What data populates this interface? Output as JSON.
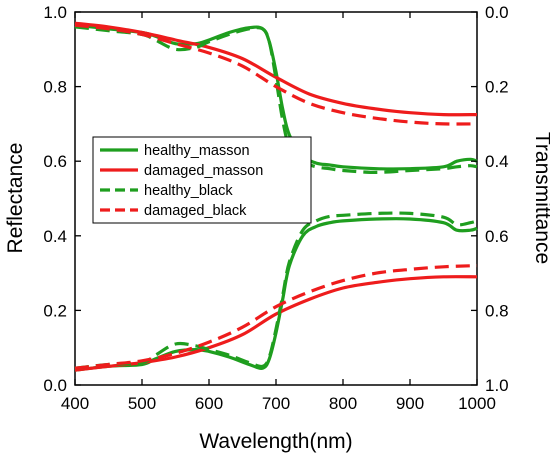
{
  "chart_data": {
    "type": "line",
    "xlabel": "Wavelength(nm)",
    "ylabel": "Reflectance",
    "y2label": "Transmittance",
    "xlim": [
      400,
      1000
    ],
    "ylim": [
      0.0,
      1.0
    ],
    "y2lim": [
      1.0,
      0.0
    ],
    "x_ticks": [
      400,
      500,
      600,
      700,
      800,
      900,
      1000
    ],
    "y_ticks": [
      0.0,
      0.2,
      0.4,
      0.6,
      0.8,
      1.0
    ],
    "y_tick_labels": [
      "0.0",
      "0.2",
      "0.4",
      "0.6",
      "0.8",
      "1.0"
    ],
    "y2_ticks": [
      0.0,
      0.2,
      0.4,
      0.6,
      0.8,
      1.0
    ],
    "y2_tick_labels": [
      "0.0",
      "0.2",
      "0.4",
      "0.6",
      "0.8",
      "1.0"
    ],
    "grid": false,
    "legend_position": "upper-left",
    "legend": [
      {
        "label": "healthy_masson",
        "color": "#1f9e1f",
        "style": "solid"
      },
      {
        "label": "damaged_masson",
        "color": "#ee1c1c",
        "style": "solid"
      },
      {
        "label": "healthy_black",
        "color": "#1f9e1f",
        "style": "dashed"
      },
      {
        "label": "damaged_black",
        "color": "#ee1c1c",
        "style": "dashed"
      }
    ],
    "series": [
      {
        "name": "healthy_masson",
        "axis": "left",
        "color": "#1f9e1f",
        "style": "solid",
        "x": [
          400,
          450,
          500,
          520,
          550,
          580,
          600,
          630,
          660,
          680,
          690,
          700,
          710,
          720,
          740,
          760,
          780,
          800,
          850,
          900,
          950,
          970,
          990,
          1000
        ],
        "y": [
          0.965,
          0.955,
          0.945,
          0.935,
          0.915,
          0.915,
          0.925,
          0.945,
          0.958,
          0.955,
          0.92,
          0.84,
          0.74,
          0.67,
          0.615,
          0.595,
          0.59,
          0.585,
          0.58,
          0.58,
          0.585,
          0.6,
          0.605,
          0.6
        ]
      },
      {
        "name": "damaged_masson",
        "axis": "left",
        "color": "#ee1c1c",
        "style": "solid",
        "x": [
          400,
          450,
          500,
          550,
          600,
          650,
          700,
          750,
          800,
          850,
          900,
          950,
          1000
        ],
        "y": [
          0.97,
          0.96,
          0.945,
          0.925,
          0.905,
          0.875,
          0.825,
          0.78,
          0.755,
          0.74,
          0.73,
          0.725,
          0.725
        ]
      },
      {
        "name": "healthy_black",
        "axis": "left",
        "color": "#1f9e1f",
        "style": "dashed",
        "x": [
          400,
          450,
          500,
          520,
          550,
          580,
          600,
          630,
          660,
          680,
          690,
          700,
          710,
          720,
          740,
          760,
          780,
          800,
          850,
          900,
          950,
          970,
          990,
          1000
        ],
        "y": [
          0.96,
          0.95,
          0.94,
          0.925,
          0.9,
          0.905,
          0.92,
          0.94,
          0.955,
          0.955,
          0.92,
          0.82,
          0.71,
          0.64,
          0.6,
          0.585,
          0.58,
          0.575,
          0.57,
          0.575,
          0.58,
          0.585,
          0.588,
          0.585
        ]
      },
      {
        "name": "damaged_black",
        "axis": "left",
        "color": "#ee1c1c",
        "style": "dashed",
        "x": [
          400,
          450,
          500,
          550,
          600,
          650,
          700,
          750,
          800,
          850,
          900,
          950,
          1000
        ],
        "y": [
          0.965,
          0.955,
          0.94,
          0.915,
          0.89,
          0.855,
          0.8,
          0.755,
          0.73,
          0.715,
          0.705,
          0.7,
          0.7
        ]
      },
      {
        "name": "healthy_masson",
        "axis": "right",
        "color": "#1f9e1f",
        "style": "solid",
        "x": [
          400,
          450,
          500,
          520,
          550,
          580,
          600,
          630,
          660,
          680,
          690,
          700,
          710,
          720,
          740,
          760,
          780,
          800,
          850,
          900,
          950,
          970,
          990,
          1000
        ],
        "y": [
          0.96,
          0.95,
          0.945,
          0.93,
          0.91,
          0.905,
          0.91,
          0.925,
          0.945,
          0.955,
          0.93,
          0.86,
          0.77,
          0.68,
          0.6,
          0.575,
          0.565,
          0.56,
          0.555,
          0.555,
          0.565,
          0.585,
          0.585,
          0.58
        ]
      },
      {
        "name": "damaged_masson",
        "axis": "right",
        "color": "#ee1c1c",
        "style": "solid",
        "x": [
          400,
          450,
          500,
          550,
          600,
          650,
          700,
          750,
          800,
          850,
          900,
          950,
          1000
        ],
        "y": [
          0.96,
          0.95,
          0.94,
          0.925,
          0.9,
          0.865,
          0.81,
          0.77,
          0.74,
          0.725,
          0.715,
          0.71,
          0.71
        ]
      },
      {
        "name": "healthy_black",
        "axis": "right",
        "color": "#1f9e1f",
        "style": "dashed",
        "x": [
          400,
          450,
          500,
          520,
          550,
          580,
          600,
          630,
          660,
          680,
          690,
          700,
          710,
          720,
          740,
          760,
          780,
          800,
          850,
          900,
          950,
          970,
          990,
          1000
        ],
        "y": [
          0.955,
          0.945,
          0.94,
          0.92,
          0.89,
          0.895,
          0.905,
          0.92,
          0.94,
          0.95,
          0.925,
          0.85,
          0.76,
          0.67,
          0.585,
          0.56,
          0.548,
          0.545,
          0.54,
          0.54,
          0.55,
          0.57,
          0.565,
          0.56
        ]
      },
      {
        "name": "damaged_black",
        "axis": "right",
        "color": "#ee1c1c",
        "style": "dashed",
        "x": [
          400,
          450,
          500,
          550,
          600,
          650,
          700,
          750,
          800,
          850,
          900,
          950,
          1000
        ],
        "y": [
          0.955,
          0.945,
          0.935,
          0.915,
          0.885,
          0.845,
          0.79,
          0.75,
          0.72,
          0.7,
          0.69,
          0.683,
          0.68
        ]
      }
    ]
  }
}
